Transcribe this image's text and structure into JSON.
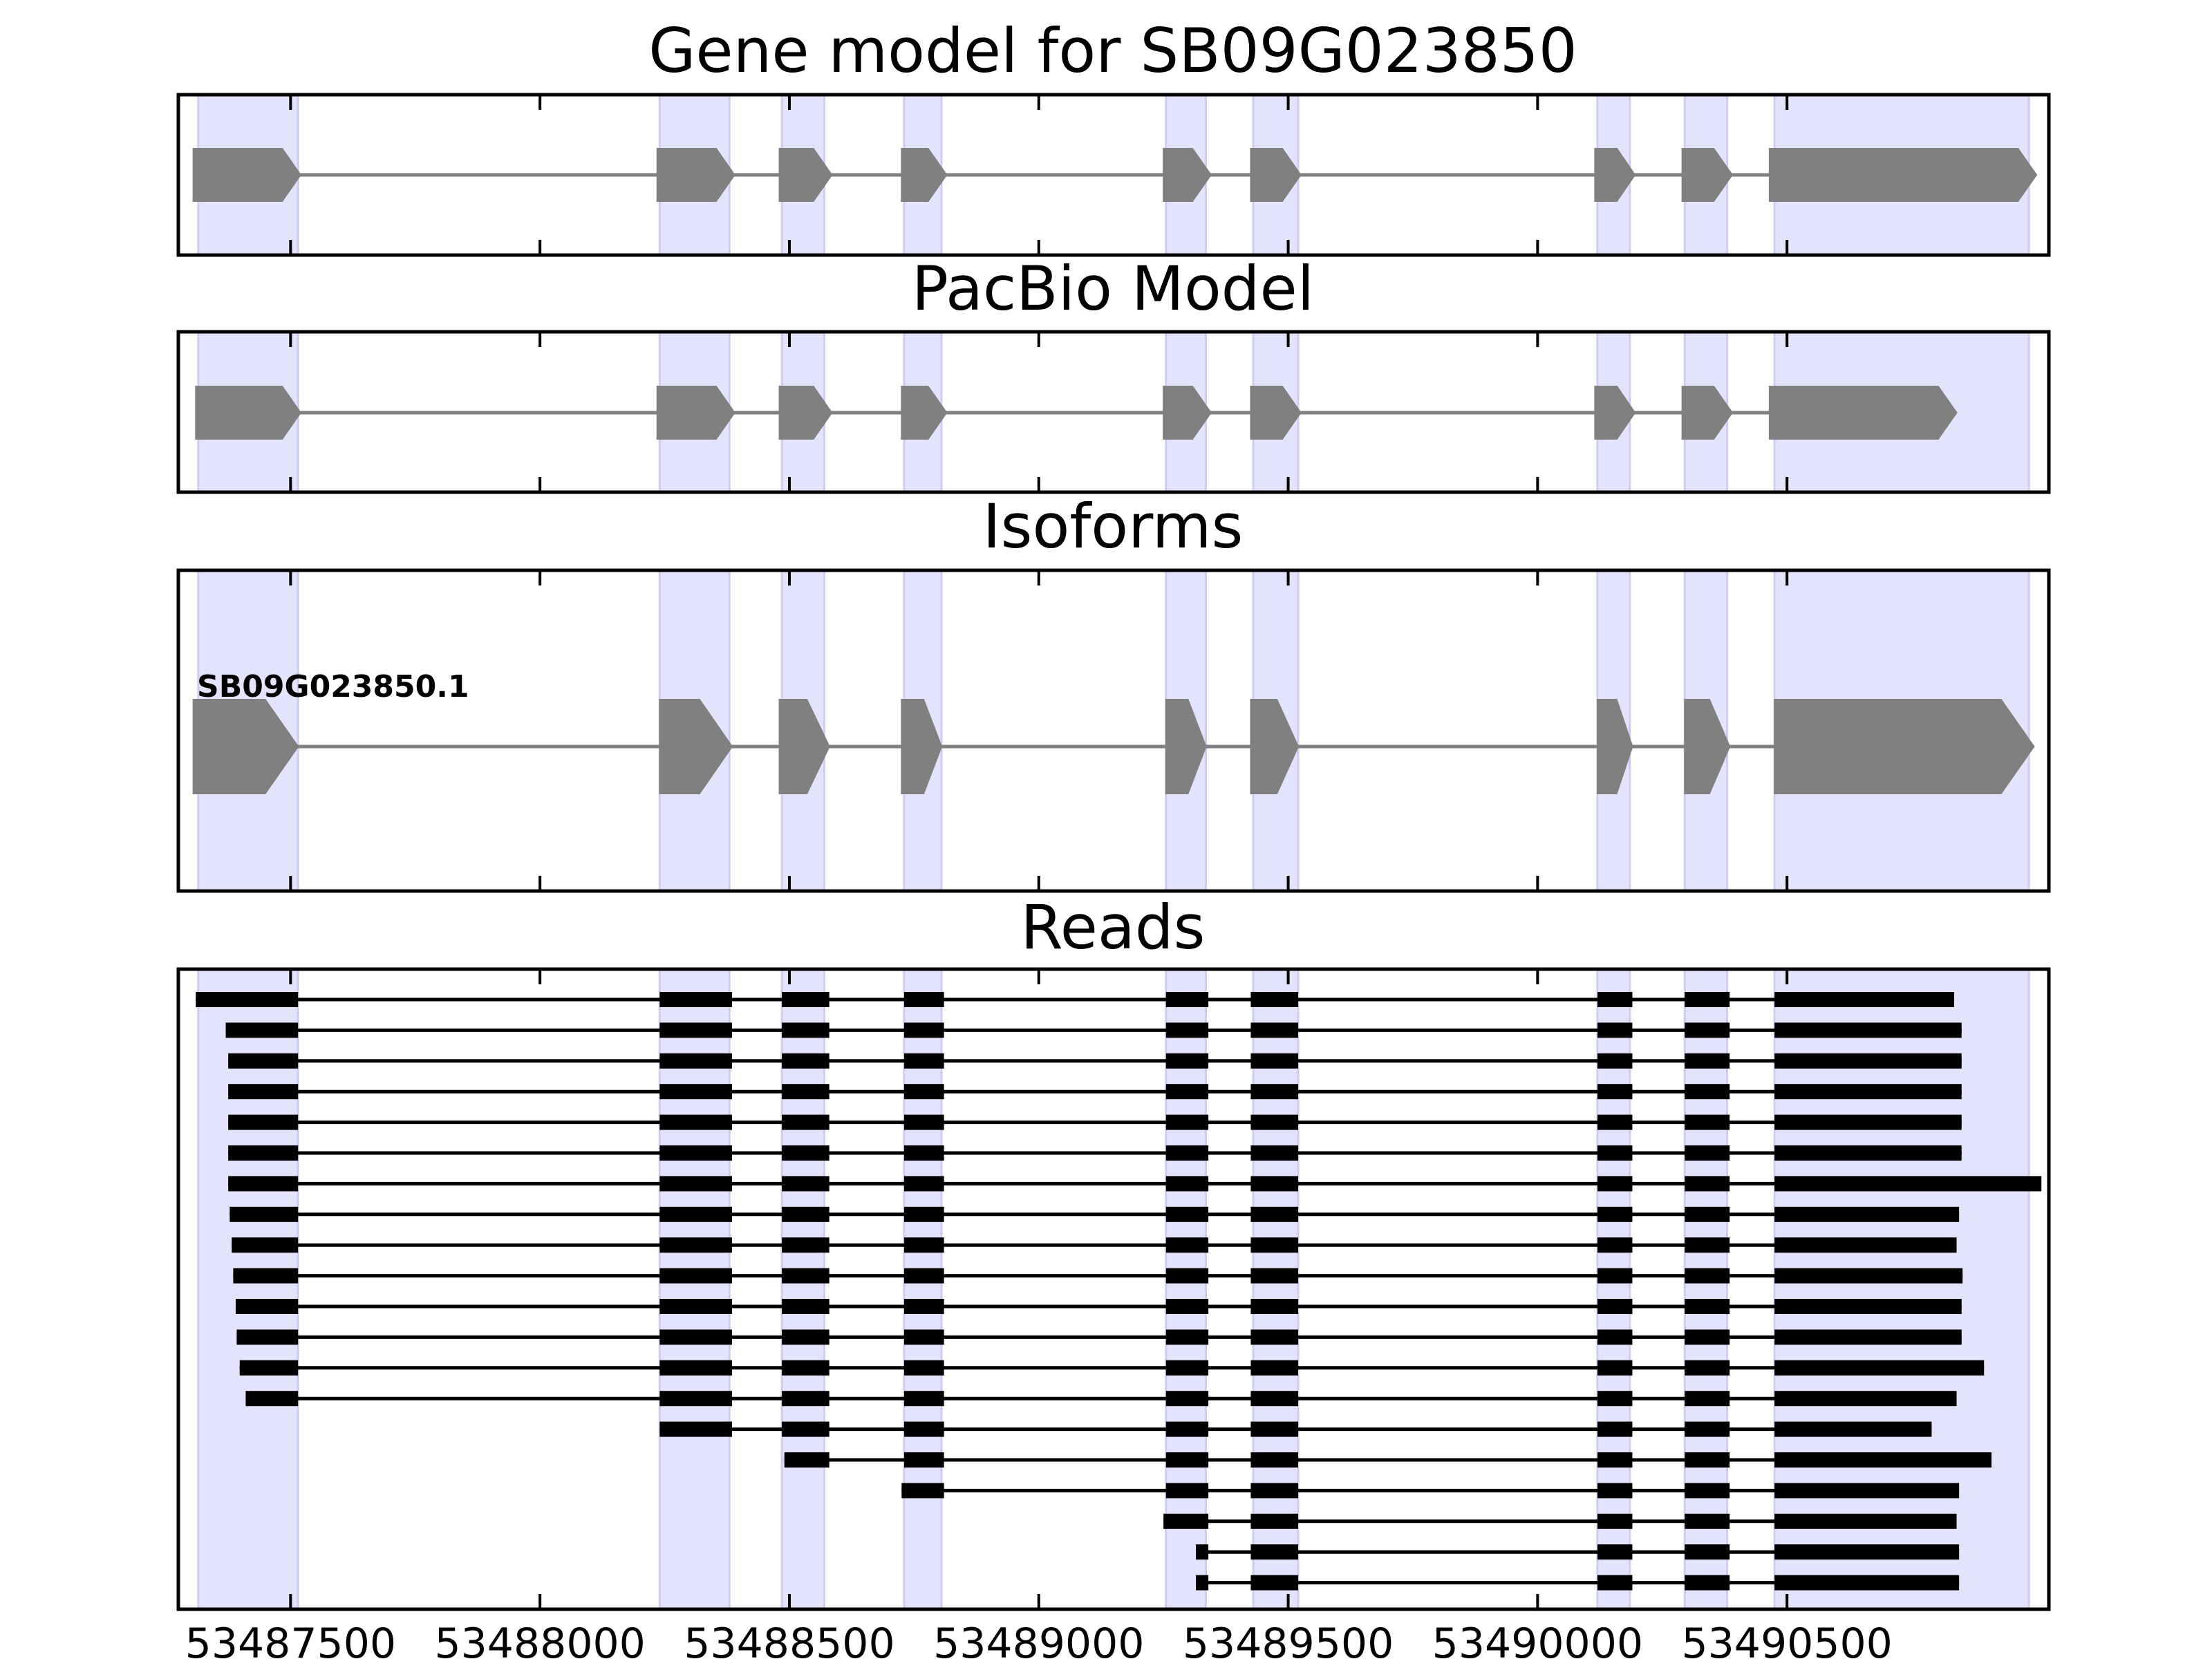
{
  "chart_data": {
    "type": "gene-track",
    "xlim": [
      53487275,
      53491025
    ],
    "x_ticks": [
      53487500,
      53488000,
      53488500,
      53489000,
      53489500,
      53490000,
      53490500
    ],
    "colors": {
      "highlight": "#e3e3fb",
      "feature": "#808080",
      "read": "#000000",
      "axis": "#000000"
    },
    "highlight_regions": [
      [
        53487315,
        53487515
      ],
      [
        53488240,
        53488380
      ],
      [
        53488485,
        53488570
      ],
      [
        53488730,
        53488805
      ],
      [
        53489255,
        53489335
      ],
      [
        53489430,
        53489520
      ],
      [
        53490120,
        53490185
      ],
      [
        53490295,
        53490380
      ],
      [
        53490475,
        53490985
      ]
    ],
    "panels": [
      {
        "title": "Gene model for SB09G023850",
        "strand": "+",
        "features": [
          [
            53487305,
            53487520
          ],
          [
            53488235,
            53488390
          ],
          [
            53488480,
            53488585
          ],
          [
            53488725,
            53488815
          ],
          [
            53489250,
            53489345
          ],
          [
            53489425,
            53489525
          ],
          [
            53490115,
            53490195
          ],
          [
            53490290,
            53490390
          ],
          [
            53490465,
            53491000
          ]
        ]
      },
      {
        "title": "PacBio Model",
        "strand": "+",
        "features": [
          [
            53487310,
            53487520
          ],
          [
            53488235,
            53488390
          ],
          [
            53488480,
            53488585
          ],
          [
            53488725,
            53488815
          ],
          [
            53489250,
            53489345
          ],
          [
            53489425,
            53489525
          ],
          [
            53490115,
            53490195
          ],
          [
            53490290,
            53490390
          ],
          [
            53490465,
            53490840
          ]
        ]
      },
      {
        "title": "Isoforms",
        "strand": "+",
        "isoforms": [
          {
            "name": "SB09G023850.1",
            "exons": [
              [
                53487305,
                53487515
              ],
              [
                53488240,
                53488385
              ],
              [
                53488480,
                53488580
              ],
              [
                53488725,
                53488805
              ],
              [
                53489255,
                53489335
              ],
              [
                53489425,
                53489520
              ],
              [
                53490120,
                53490190
              ],
              [
                53490295,
                53490385
              ],
              [
                53490475,
                53490995
              ]
            ]
          }
        ]
      },
      {
        "title": "Reads",
        "reads": [
          [
            [
              53487310,
              53487515
            ],
            [
              53488240,
              53488385
            ],
            [
              53488485,
              53488580
            ],
            [
              53488730,
              53488810
            ],
            [
              53489255,
              53489340
            ],
            [
              53489425,
              53489520
            ],
            [
              53490120,
              53490190
            ],
            [
              53490295,
              53490385
            ],
            [
              53490475,
              53490835
            ]
          ],
          [
            [
              53487370,
              53487515
            ],
            [
              53488240,
              53488385
            ],
            [
              53488485,
              53488580
            ],
            [
              53488730,
              53488810
            ],
            [
              53489255,
              53489340
            ],
            [
              53489425,
              53489520
            ],
            [
              53490120,
              53490190
            ],
            [
              53490295,
              53490385
            ],
            [
              53490475,
              53490850
            ]
          ],
          [
            [
              53487375,
              53487515
            ],
            [
              53488240,
              53488385
            ],
            [
              53488485,
              53488580
            ],
            [
              53488730,
              53488810
            ],
            [
              53489255,
              53489340
            ],
            [
              53489425,
              53489520
            ],
            [
              53490120,
              53490190
            ],
            [
              53490295,
              53490385
            ],
            [
              53490475,
              53490850
            ]
          ],
          [
            [
              53487375,
              53487515
            ],
            [
              53488240,
              53488385
            ],
            [
              53488485,
              53488580
            ],
            [
              53488730,
              53488810
            ],
            [
              53489255,
              53489340
            ],
            [
              53489425,
              53489520
            ],
            [
              53490120,
              53490190
            ],
            [
              53490295,
              53490385
            ],
            [
              53490475,
              53490850
            ]
          ],
          [
            [
              53487375,
              53487515
            ],
            [
              53488240,
              53488385
            ],
            [
              53488485,
              53488580
            ],
            [
              53488730,
              53488810
            ],
            [
              53489255,
              53489340
            ],
            [
              53489425,
              53489520
            ],
            [
              53490120,
              53490190
            ],
            [
              53490295,
              53490385
            ],
            [
              53490475,
              53490850
            ]
          ],
          [
            [
              53487375,
              53487515
            ],
            [
              53488240,
              53488385
            ],
            [
              53488485,
              53488580
            ],
            [
              53488730,
              53488810
            ],
            [
              53489255,
              53489340
            ],
            [
              53489425,
              53489520
            ],
            [
              53490120,
              53490190
            ],
            [
              53490295,
              53490385
            ],
            [
              53490475,
              53490850
            ]
          ],
          [
            [
              53487375,
              53487515
            ],
            [
              53488240,
              53488385
            ],
            [
              53488485,
              53488580
            ],
            [
              53488730,
              53488810
            ],
            [
              53489255,
              53489340
            ],
            [
              53489425,
              53489520
            ],
            [
              53490120,
              53490190
            ],
            [
              53490295,
              53490385
            ],
            [
              53490475,
              53491010
            ]
          ],
          [
            [
              53487378,
              53487515
            ],
            [
              53488240,
              53488385
            ],
            [
              53488485,
              53488580
            ],
            [
              53488730,
              53488810
            ],
            [
              53489255,
              53489340
            ],
            [
              53489425,
              53489520
            ],
            [
              53490120,
              53490190
            ],
            [
              53490295,
              53490385
            ],
            [
              53490475,
              53490845
            ]
          ],
          [
            [
              53487382,
              53487515
            ],
            [
              53488240,
              53488385
            ],
            [
              53488485,
              53488580
            ],
            [
              53488730,
              53488810
            ],
            [
              53489255,
              53489340
            ],
            [
              53489425,
              53489520
            ],
            [
              53490120,
              53490190
            ],
            [
              53490295,
              53490385
            ],
            [
              53490475,
              53490840
            ]
          ],
          [
            [
              53487385,
              53487515
            ],
            [
              53488240,
              53488385
            ],
            [
              53488485,
              53488580
            ],
            [
              53488730,
              53488810
            ],
            [
              53489255,
              53489340
            ],
            [
              53489425,
              53489520
            ],
            [
              53490120,
              53490190
            ],
            [
              53490295,
              53490385
            ],
            [
              53490475,
              53490852
            ]
          ],
          [
            [
              53487390,
              53487515
            ],
            [
              53488240,
              53488385
            ],
            [
              53488485,
              53488580
            ],
            [
              53488730,
              53488810
            ],
            [
              53489255,
              53489340
            ],
            [
              53489425,
              53489520
            ],
            [
              53490120,
              53490190
            ],
            [
              53490295,
              53490385
            ],
            [
              53490475,
              53490850
            ]
          ],
          [
            [
              53487392,
              53487515
            ],
            [
              53488240,
              53488385
            ],
            [
              53488485,
              53488580
            ],
            [
              53488730,
              53488810
            ],
            [
              53489255,
              53489340
            ],
            [
              53489425,
              53489520
            ],
            [
              53490120,
              53490190
            ],
            [
              53490295,
              53490385
            ],
            [
              53490475,
              53490850
            ]
          ],
          [
            [
              53487398,
              53487515
            ],
            [
              53488240,
              53488385
            ],
            [
              53488485,
              53488580
            ],
            [
              53488730,
              53488810
            ],
            [
              53489255,
              53489340
            ],
            [
              53489425,
              53489520
            ],
            [
              53490120,
              53490190
            ],
            [
              53490295,
              53490385
            ],
            [
              53490475,
              53490895
            ]
          ],
          [
            [
              53487410,
              53487515
            ],
            [
              53488240,
              53488385
            ],
            [
              53488485,
              53488580
            ],
            [
              53488730,
              53488810
            ],
            [
              53489255,
              53489340
            ],
            [
              53489425,
              53489520
            ],
            [
              53490120,
              53490190
            ],
            [
              53490295,
              53490385
            ],
            [
              53490475,
              53490840
            ]
          ],
          [
            [
              53488240,
              53488385
            ],
            [
              53488485,
              53488580
            ],
            [
              53488730,
              53488810
            ],
            [
              53489255,
              53489340
            ],
            [
              53489425,
              53489520
            ],
            [
              53490120,
              53490190
            ],
            [
              53490295,
              53490385
            ],
            [
              53490475,
              53490790
            ]
          ],
          [
            [
              53488490,
              53488580
            ],
            [
              53488730,
              53488810
            ],
            [
              53489255,
              53489340
            ],
            [
              53489425,
              53489520
            ],
            [
              53490120,
              53490190
            ],
            [
              53490295,
              53490385
            ],
            [
              53490475,
              53490910
            ]
          ],
          [
            [
              53488725,
              53488810
            ],
            [
              53489255,
              53489340
            ],
            [
              53489425,
              53489520
            ],
            [
              53490120,
              53490190
            ],
            [
              53490295,
              53490385
            ],
            [
              53490475,
              53490845
            ]
          ],
          [
            [
              53489250,
              53489340
            ],
            [
              53489425,
              53489520
            ],
            [
              53490120,
              53490190
            ],
            [
              53490295,
              53490385
            ],
            [
              53490475,
              53490840
            ]
          ],
          [
            [
              53489315,
              53489340
            ],
            [
              53489425,
              53489520
            ],
            [
              53490120,
              53490190
            ],
            [
              53490295,
              53490385
            ],
            [
              53490475,
              53490845
            ]
          ],
          [
            [
              53489315,
              53489340
            ],
            [
              53489425,
              53489520
            ],
            [
              53490120,
              53490190
            ],
            [
              53490295,
              53490385
            ],
            [
              53490475,
              53490845
            ]
          ]
        ]
      }
    ]
  }
}
